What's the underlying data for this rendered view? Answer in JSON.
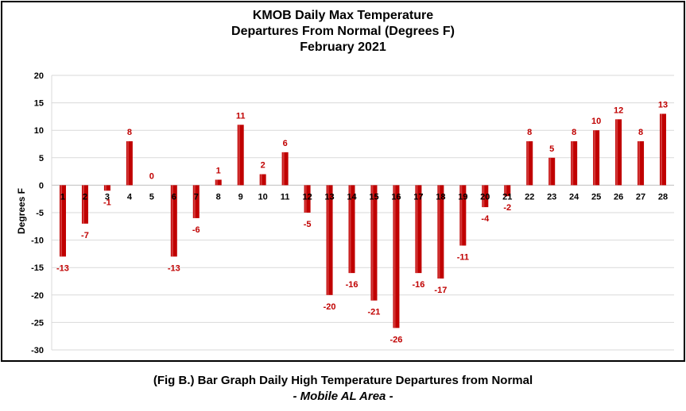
{
  "chart_data": {
    "type": "bar",
    "title": [
      "KMOB Daily Max Temperature",
      "Departures From Normal (Degrees F)",
      "February 2021"
    ],
    "ylabel": "Degrees F",
    "xlabel": "",
    "ylim": [
      -30,
      20
    ],
    "yticks": [
      20,
      15,
      10,
      5,
      0,
      -5,
      -10,
      -15,
      -20,
      -25,
      -30
    ],
    "grid": true,
    "legend": "none",
    "categories": [
      "1",
      "2",
      "3",
      "4",
      "5",
      "6",
      "7",
      "8",
      "9",
      "10",
      "11",
      "12",
      "13",
      "14",
      "15",
      "16",
      "17",
      "18",
      "19",
      "20",
      "21",
      "22",
      "23",
      "24",
      "25",
      "26",
      "27",
      "28"
    ],
    "values": [
      -13,
      -7,
      -1,
      8,
      0,
      -13,
      -6,
      1,
      11,
      2,
      6,
      -5,
      -20,
      -16,
      -21,
      -26,
      -16,
      -17,
      -11,
      -4,
      -2,
      8,
      5,
      8,
      10,
      12,
      8,
      13
    ],
    "bar_color": "#c00000",
    "label_color": "#c00000"
  },
  "caption": {
    "line1": "(Fig B.) Bar Graph Daily High Temperature Departures from Normal",
    "line2": "- Mobile AL Area -"
  }
}
